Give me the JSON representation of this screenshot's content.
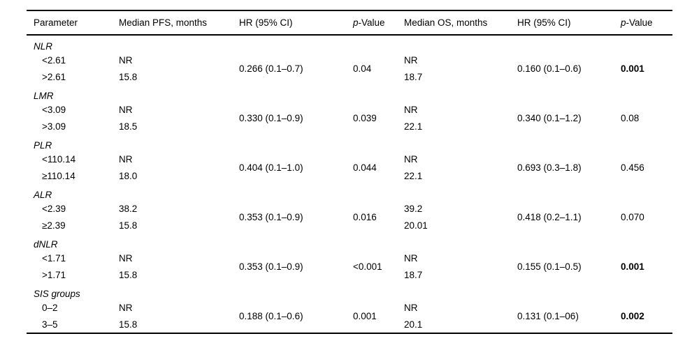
{
  "table": {
    "headers": {
      "parameter": "Parameter",
      "pfs_median": "Median PFS, months",
      "pfs_hr": "HR (95% CI)",
      "pfs_p_italic": "p",
      "pfs_p_rest": "-Value",
      "os_median": "Median OS, months",
      "os_hr": "HR (95% CI)",
      "os_p_italic": "p",
      "os_p_rest": "-Value"
    },
    "sections": [
      {
        "group": "NLR",
        "rows": [
          {
            "cutoff": "<2.61",
            "pfs_median": "NR",
            "os_median": "NR"
          },
          {
            "cutoff": ">2.61",
            "pfs_median": "15.8",
            "os_median": "18.7"
          }
        ],
        "pfs_hr": "0.266 (0.1–0.7)",
        "pfs_p": "0.04",
        "pfs_p_bold": false,
        "os_hr": "0.160 (0.1–0.6)",
        "os_p": "0.001",
        "os_p_bold": true
      },
      {
        "group": "LMR",
        "rows": [
          {
            "cutoff": "<3.09",
            "pfs_median": "NR",
            "os_median": "NR"
          },
          {
            "cutoff": ">3.09",
            "pfs_median": "18.5",
            "os_median": "22.1"
          }
        ],
        "pfs_hr": "0.330 (0.1–0.9)",
        "pfs_p": "0.039",
        "pfs_p_bold": false,
        "os_hr": "0.340 (0.1–1.2)",
        "os_p": "0.08",
        "os_p_bold": false
      },
      {
        "group": "PLR",
        "rows": [
          {
            "cutoff": "<110.14",
            "pfs_median": "NR",
            "os_median": "NR"
          },
          {
            "cutoff": "≥110.14",
            "pfs_median": "18.0",
            "os_median": "22.1"
          }
        ],
        "pfs_hr": "0.404 (0.1–1.0)",
        "pfs_p": "0.044",
        "pfs_p_bold": false,
        "os_hr": "0.693 (0.3–1.8)",
        "os_p": "0.456",
        "os_p_bold": false
      },
      {
        "group": "ALR",
        "rows": [
          {
            "cutoff": "<2.39",
            "pfs_median": "38.2",
            "os_median": "39.2"
          },
          {
            "cutoff": "≥2.39",
            "pfs_median": "15.8",
            "os_median": "20.01"
          }
        ],
        "pfs_hr": "0.353 (0.1–0.9)",
        "pfs_p": "0.016",
        "pfs_p_bold": false,
        "os_hr": "0.418 (0.2–1.1)",
        "os_p": "0.070",
        "os_p_bold": false
      },
      {
        "group": "dNLR",
        "rows": [
          {
            "cutoff": "<1.71",
            "pfs_median": "NR",
            "os_median": "NR"
          },
          {
            "cutoff": ">1.71",
            "pfs_median": "15.8",
            "os_median": "18.7"
          }
        ],
        "pfs_hr": "0.353 (0.1–0.9)",
        "pfs_p": "<0.001",
        "pfs_p_bold": false,
        "os_hr": "0.155 (0.1–0.5)",
        "os_p": "0.001",
        "os_p_bold": true
      },
      {
        "group": "SIS groups",
        "rows": [
          {
            "cutoff": "0–2",
            "pfs_median": "NR",
            "os_median": "NR"
          },
          {
            "cutoff": "3–5",
            "pfs_median": "15.8",
            "os_median": "20.1"
          }
        ],
        "pfs_hr": "0.188 (0.1–0.6)",
        "pfs_p": "0.001",
        "pfs_p_bold": false,
        "os_hr": "0.131 (0.1–06)",
        "os_p": "0.002",
        "os_p_bold": true
      }
    ]
  }
}
